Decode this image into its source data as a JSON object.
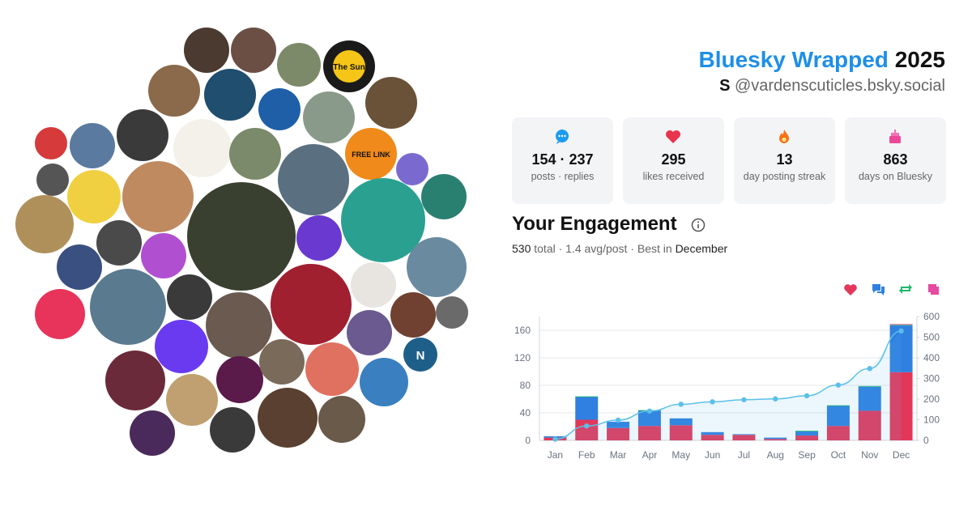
{
  "header": {
    "title": "Bluesky Wrapped",
    "year": "2025",
    "display_name": "S",
    "handle": "@vardenscuticles.bsky.social"
  },
  "stats": [
    {
      "value": "154 · 237",
      "label": "posts · replies"
    },
    {
      "value": 295,
      "label": "likes received"
    },
    {
      "value": 13,
      "label": "day posting streak"
    },
    {
      "value": 863,
      "label": "days on Bluesky"
    }
  ],
  "engagement": {
    "title": "Your Engagement",
    "total": 530,
    "summary": "total · 1.4 avg/post · Best in",
    "best_month": "December"
  },
  "avatar_labels": [
    "The Sun",
    "FREE LINK",
    "N"
  ],
  "chart_data": {
    "type": "bar",
    "stacked": true,
    "categories": [
      "Jan",
      "Feb",
      "Mar",
      "Apr",
      "May",
      "Jun",
      "Jul",
      "Aug",
      "Sep",
      "Oct",
      "Nov",
      "Dec"
    ],
    "series": [
      {
        "color": "#e3375a",
        "values": [
          4,
          30,
          18,
          21,
          22,
          8,
          8,
          2,
          7,
          21,
          43,
          99
        ]
      },
      {
        "color": "#2f80e0",
        "values": [
          2,
          33,
          9,
          22,
          10,
          4,
          1,
          2,
          6,
          29,
          35,
          68
        ]
      },
      {
        "color": "#1fb86a",
        "values": [
          0,
          1,
          0,
          1,
          0,
          0,
          0,
          0,
          1,
          1,
          1,
          1
        ]
      },
      {
        "color": "#e64aa0",
        "values": [
          0,
          0,
          0,
          0,
          0,
          0,
          0,
          0,
          0,
          0,
          0,
          1
        ]
      },
      {
        "type": "line",
        "axis": "y2",
        "color": "#5bbfea",
        "values": [
          6,
          70,
          98,
          142,
          175,
          187,
          197,
          201,
          216,
          268,
          348,
          530
        ]
      }
    ],
    "ylim": [
      0,
      180
    ],
    "yticks": [
      0,
      40,
      80,
      120,
      160
    ],
    "y2lim": [
      0,
      600
    ],
    "y2ticks": [
      0,
      100,
      200,
      300,
      400,
      500,
      600
    ],
    "grid": true
  }
}
